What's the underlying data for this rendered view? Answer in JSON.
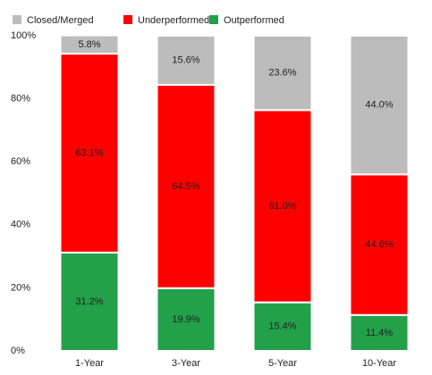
{
  "chart_data": {
    "type": "stacked_bar",
    "categories": [
      "1-Year",
      "3-Year",
      "5-Year",
      "10-Year"
    ],
    "series": [
      {
        "name": "Outperformed",
        "color": "#22a04a",
        "values": [
          31.2,
          19.9,
          15.4,
          11.4
        ],
        "value_labels": [
          "31.2%",
          "19.9%",
          "15.4%",
          "11.4%"
        ]
      },
      {
        "name": "Underperformed",
        "color": "#fe0000",
        "values": [
          63.1,
          64.5,
          61.0,
          44.6
        ],
        "value_labels": [
          "63.1%",
          "64.5%",
          "61.0%",
          "44.6%"
        ]
      },
      {
        "name": "Closed/Merged",
        "color": "#bdbcbc",
        "values": [
          5.8,
          15.6,
          23.6,
          44.0
        ],
        "value_labels": [
          "5.8%",
          "15.6%",
          "23.6%",
          "44.0%"
        ]
      }
    ],
    "ylim": [
      0,
      100
    ],
    "yticks": [
      {
        "value": 0,
        "label": "0%"
      },
      {
        "value": 20,
        "label": "20%"
      },
      {
        "value": 40,
        "label": "40%"
      },
      {
        "value": 60,
        "label": "60%"
      },
      {
        "value": 80,
        "label": "80%"
      },
      {
        "value": 100,
        "label": "100%"
      }
    ],
    "grid": false
  }
}
